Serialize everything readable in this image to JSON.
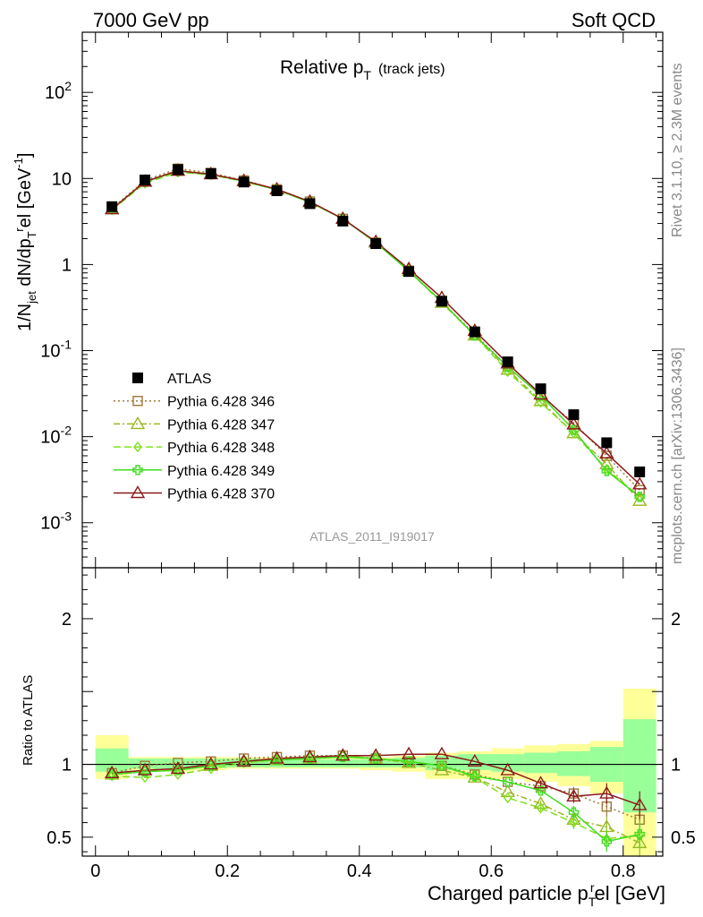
{
  "header": {
    "left": "7000 GeV pp",
    "right": "Soft QCD",
    "watermark_version": "Rivet 3.1.10, ≥ 2.3M events",
    "watermark_site": "mcplots.cern.ch [arXiv:1306.3436]",
    "analysis_id": "ATLAS_2011_I919017"
  },
  "colors": {
    "atlas": "#000000",
    "p346": "#a07838",
    "p347": "#9ab820",
    "p348": "#80e020",
    "p349": "#40dd20",
    "p370": "#8b1a1a",
    "band_inner": "#99ff99",
    "band_outer": "#ffff99"
  },
  "chart_data": [
    {
      "type": "line",
      "panel": "main",
      "title": "Relative p_T (track jets)",
      "title_main": "Relative p",
      "title_sub": "T",
      "title_paren": "(track jets)",
      "ylabel": "1/N_jet dN/dp_T^rel [GeV^-1]",
      "yscale": "log",
      "ylim": [
        0.0003,
        500
      ],
      "xlim": [
        -0.02,
        0.86
      ],
      "ytick_labels": [
        "10^-3",
        "10^-2",
        "10^-1",
        "1",
        "10",
        "10^2"
      ],
      "legend_position": "left",
      "x": [
        0.025,
        0.075,
        0.125,
        0.175,
        0.225,
        0.275,
        0.325,
        0.375,
        0.425,
        0.475,
        0.525,
        0.575,
        0.625,
        0.675,
        0.725,
        0.775,
        0.825
      ],
      "series": [
        {
          "name": "ATLAS",
          "key": "atlas",
          "marker": "square-filled",
          "values": [
            4.7,
            9.6,
            12.7,
            11.4,
            9.1,
            7.2,
            5.1,
            3.2,
            1.75,
            0.83,
            0.375,
            0.165,
            0.074,
            0.036,
            0.018,
            0.0085,
            0.0039
          ]
        },
        {
          "name": "Pythia 6.428 346",
          "key": "p346",
          "marker": "square-open",
          "dash": "2,3",
          "values": [
            4.5,
            9.5,
            13.0,
            11.6,
            9.5,
            7.5,
            5.4,
            3.4,
            1.8,
            0.85,
            0.37,
            0.155,
            0.065,
            0.03,
            0.0145,
            0.006,
            0.0024
          ]
        },
        {
          "name": "Pythia 6.428 347",
          "key": "p347",
          "marker": "triangle-open",
          "dash": "7,3,2,3",
          "values": [
            4.4,
            9.2,
            12.4,
            11.3,
            9.3,
            7.4,
            5.3,
            3.4,
            1.8,
            0.84,
            0.36,
            0.15,
            0.06,
            0.026,
            0.011,
            0.0048,
            0.0018
          ]
        },
        {
          "name": "Pythia 6.428 348",
          "key": "p348",
          "marker": "diamond-open",
          "dash": "8,4",
          "values": [
            4.3,
            8.8,
            11.8,
            11.0,
            9.2,
            7.4,
            5.3,
            3.4,
            1.8,
            0.85,
            0.37,
            0.15,
            0.057,
            0.025,
            0.011,
            0.0042,
            0.002
          ]
        },
        {
          "name": "Pythia 6.428 349",
          "key": "p349",
          "marker": "cross-open",
          "dash": "",
          "values": [
            4.4,
            9.1,
            12.2,
            11.2,
            9.3,
            7.4,
            5.3,
            3.4,
            1.8,
            0.84,
            0.37,
            0.15,
            0.065,
            0.03,
            0.012,
            0.004,
            0.002
          ]
        },
        {
          "name": "Pythia 6.428 370",
          "key": "p370",
          "marker": "triangle-open",
          "dash": "",
          "values": [
            4.4,
            9.2,
            12.3,
            11.2,
            9.4,
            7.5,
            5.4,
            3.4,
            1.84,
            0.89,
            0.41,
            0.17,
            0.071,
            0.031,
            0.0139,
            0.0064,
            0.0028
          ]
        }
      ]
    },
    {
      "type": "line",
      "panel": "ratio",
      "ylabel": "Ratio to ATLAS",
      "xlabel": "Charged particle p_T^rel [GeV]",
      "xlabel_main": "Charged particle p",
      "xlabel_sub": "T",
      "xlabel_sup": "r",
      "xlabel_tail": "el [GeV]",
      "ylim": [
        0.37,
        2.35
      ],
      "ytick_labels": [
        "0.5",
        "1",
        "2"
      ],
      "xtick_labels": [
        "0",
        "0.2",
        "0.4",
        "0.6",
        "0.8"
      ],
      "xticks": [
        0,
        0.2,
        0.4,
        0.6,
        0.8
      ],
      "band_edges": [
        0,
        0.05,
        0.1,
        0.15,
        0.2,
        0.25,
        0.3,
        0.35,
        0.4,
        0.45,
        0.5,
        0.55,
        0.6,
        0.65,
        0.7,
        0.75,
        0.8,
        0.85
      ],
      "band_inner_lo": [
        0.95,
        0.97,
        0.97,
        0.975,
        0.98,
        0.98,
        0.98,
        0.98,
        0.98,
        0.98,
        0.96,
        0.96,
        0.95,
        0.94,
        0.92,
        0.88,
        0.67
      ],
      "band_inner_hi": [
        1.11,
        1.04,
        1.04,
        1.04,
        1.04,
        1.035,
        1.035,
        1.035,
        1.035,
        1.045,
        1.06,
        1.07,
        1.07,
        1.08,
        1.09,
        1.12,
        1.31
      ],
      "band_outer_lo": [
        0.9,
        0.95,
        0.95,
        0.96,
        0.97,
        0.97,
        0.97,
        0.97,
        0.96,
        0.95,
        0.9,
        0.9,
        0.9,
        0.88,
        0.85,
        0.8,
        0.37
      ],
      "band_outer_hi": [
        1.2,
        1.05,
        1.05,
        1.05,
        1.05,
        1.05,
        1.05,
        1.05,
        1.05,
        1.06,
        1.08,
        1.09,
        1.11,
        1.13,
        1.14,
        1.16,
        1.52
      ],
      "series": [
        {
          "name": "Pythia 6.428 346",
          "key": "p346",
          "marker": "square-open",
          "dash": "2,3",
          "values": [
            0.94,
            0.99,
            1.01,
            1.02,
            1.04,
            1.05,
            1.06,
            1.06,
            1.04,
            1.02,
            0.99,
            0.93,
            0.88,
            0.85,
            0.8,
            0.71,
            0.62
          ]
        },
        {
          "name": "Pythia 6.428 347",
          "key": "p347",
          "marker": "triangle-open",
          "dash": "7,3,2,3",
          "values": [
            0.93,
            0.96,
            0.97,
            0.99,
            1.02,
            1.03,
            1.04,
            1.06,
            1.04,
            1.01,
            0.96,
            0.91,
            0.81,
            0.73,
            0.62,
            0.57,
            0.46
          ]
        },
        {
          "name": "Pythia 6.428 348",
          "key": "p348",
          "marker": "diamond-open",
          "dash": "8,4",
          "values": [
            0.92,
            0.91,
            0.93,
            0.97,
            1.01,
            1.03,
            1.05,
            1.06,
            1.04,
            1.02,
            0.99,
            0.91,
            0.77,
            0.7,
            0.6,
            0.49,
            0.51
          ]
        },
        {
          "name": "Pythia 6.428 349",
          "key": "p349",
          "marker": "cross-open",
          "dash": "",
          "values": [
            0.93,
            0.95,
            0.96,
            0.99,
            1.02,
            1.03,
            1.04,
            1.05,
            1.04,
            1.02,
            0.99,
            0.92,
            0.88,
            0.82,
            0.67,
            0.47,
            0.52
          ]
        },
        {
          "name": "Pythia 6.428 370",
          "key": "p370",
          "marker": "triangle-open",
          "dash": "",
          "values": [
            0.94,
            0.96,
            0.97,
            1.0,
            1.02,
            1.04,
            1.05,
            1.06,
            1.06,
            1.07,
            1.07,
            1.02,
            0.96,
            0.87,
            0.78,
            0.8,
            0.72
          ]
        }
      ]
    }
  ]
}
